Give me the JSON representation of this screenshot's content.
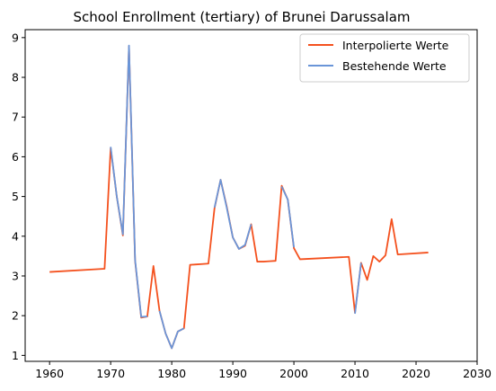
{
  "chart_data": {
    "type": "line",
    "title": "School Enrollment (tertiary) of Brunei Darussalam",
    "xlabel": "",
    "ylabel": "",
    "xlim": [
      1956.0,
      2030.0
    ],
    "ylim": [
      0.85,
      9.2
    ],
    "xticks": [
      1960,
      1970,
      1980,
      1990,
      2000,
      2010,
      2020,
      2030
    ],
    "yticks": [
      1,
      2,
      3,
      4,
      5,
      6,
      7,
      8,
      9
    ],
    "grid": false,
    "legend_position": "top-right",
    "series": [
      {
        "name": "Interpolierte Werte",
        "color": "#f4511e",
        "x": [
          1960,
          1969,
          1970,
          1971,
          1972,
          1973,
          1974,
          1975,
          1976,
          1977,
          1978,
          1979,
          1980,
          1981,
          1982,
          1983,
          1984,
          1985,
          1986,
          1987,
          1988,
          1989,
          1990,
          1991,
          1992,
          1993,
          1994,
          1995,
          1996,
          1997,
          1998,
          1999,
          2000,
          2001,
          2009,
          2010,
          2011,
          2012,
          2013,
          2014,
          2015,
          2016,
          2017,
          2022
        ],
        "y": [
          3.1,
          3.18,
          6.22,
          5.0,
          4.02,
          8.78,
          3.38,
          1.95,
          1.98,
          3.25,
          2.12,
          1.55,
          1.18,
          1.6,
          1.68,
          3.28,
          3.29,
          3.3,
          3.31,
          4.7,
          5.42,
          4.75,
          3.97,
          3.68,
          3.76,
          4.3,
          3.36,
          3.36,
          3.37,
          3.38,
          5.27,
          4.92,
          3.7,
          3.42,
          3.48,
          2.07,
          3.33,
          2.9,
          3.5,
          3.36,
          3.52,
          4.43,
          3.54,
          3.59
        ]
      },
      {
        "name": "Bestehende Werte",
        "color": "#6a95d8",
        "segments": [
          {
            "x": [
              1970,
              1971,
              1972,
              1973,
              1974,
              1975,
              1976
            ],
            "y": [
              6.25,
              5.0,
              4.05,
              8.8,
              3.4,
              1.97,
              1.98
            ]
          },
          {
            "x": [
              1978,
              1979,
              1980,
              1981,
              1982
            ],
            "y": [
              2.12,
              1.55,
              1.18,
              1.6,
              1.68
            ]
          },
          {
            "x": [
              1987,
              1988,
              1989,
              1990,
              1991,
              1992,
              1993
            ],
            "y": [
              4.72,
              5.42,
              4.72,
              3.97,
              3.68,
              3.78,
              4.3
            ]
          },
          {
            "x": [
              1998,
              1999,
              2000
            ],
            "y": [
              5.25,
              4.92,
              3.72
            ]
          },
          {
            "x": [
              2010,
              2011
            ],
            "y": [
              2.05,
              3.33
            ]
          }
        ]
      }
    ]
  }
}
